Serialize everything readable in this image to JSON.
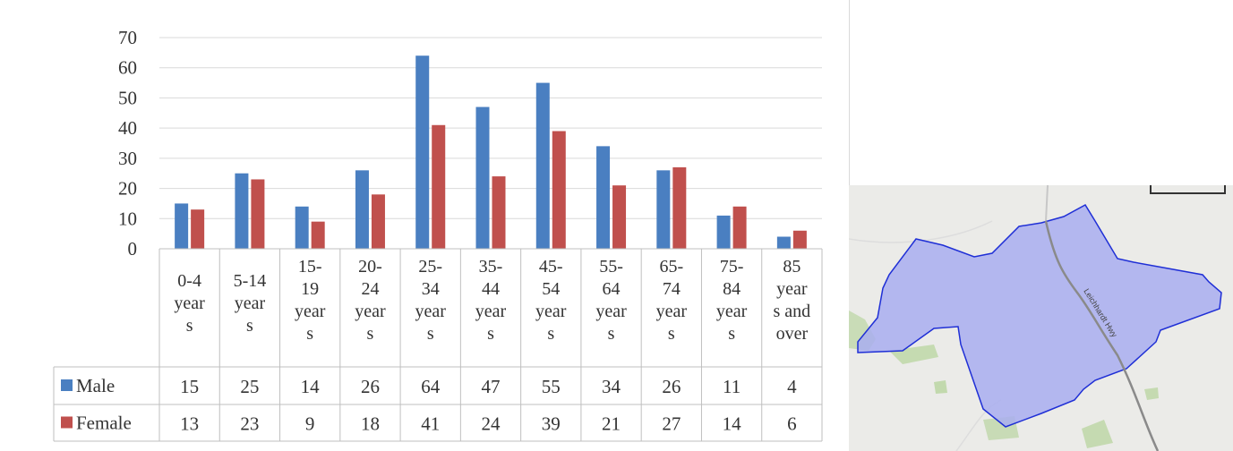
{
  "chart_data": {
    "type": "bar",
    "categories": [
      "0-4 years",
      "5-14 years",
      "15-19 years",
      "20-24 years",
      "25-34 years",
      "35-44 years",
      "45-54 years",
      "55-64 years",
      "65-74 years",
      "75-84 years",
      "85 years and over"
    ],
    "category_label_lines": [
      [
        "0-4",
        "year",
        "s"
      ],
      [
        "5-14",
        "year",
        "s"
      ],
      [
        "15-",
        "19",
        "year",
        "s"
      ],
      [
        "20-",
        "24",
        "year",
        "s"
      ],
      [
        "25-",
        "34",
        "year",
        "s"
      ],
      [
        "35-",
        "44",
        "year",
        "s"
      ],
      [
        "45-",
        "54",
        "year",
        "s"
      ],
      [
        "55-",
        "64",
        "year",
        "s"
      ],
      [
        "65-",
        "74",
        "year",
        "s"
      ],
      [
        "75-",
        "84",
        "year",
        "s"
      ],
      [
        "85",
        "year",
        "s and",
        "over"
      ]
    ],
    "series": [
      {
        "name": "Male",
        "color": "#4a7fc1",
        "values": [
          15,
          25,
          14,
          26,
          64,
          47,
          55,
          34,
          26,
          11,
          4
        ]
      },
      {
        "name": "Female",
        "color": "#c0504d",
        "values": [
          13,
          23,
          9,
          18,
          41,
          24,
          39,
          21,
          27,
          14,
          6
        ]
      }
    ],
    "ylim": [
      0,
      70
    ],
    "yticks": [
      0,
      10,
      20,
      30,
      40,
      50,
      60,
      70
    ],
    "grid": true,
    "legend": "data-table",
    "title": "",
    "xlabel": "",
    "ylabel": ""
  },
  "map": {
    "region_fill": "#a9aef0",
    "region_stroke": "#1f2fd6",
    "background": "#ebebe8",
    "road_label": "Leichhardt Hwy"
  }
}
